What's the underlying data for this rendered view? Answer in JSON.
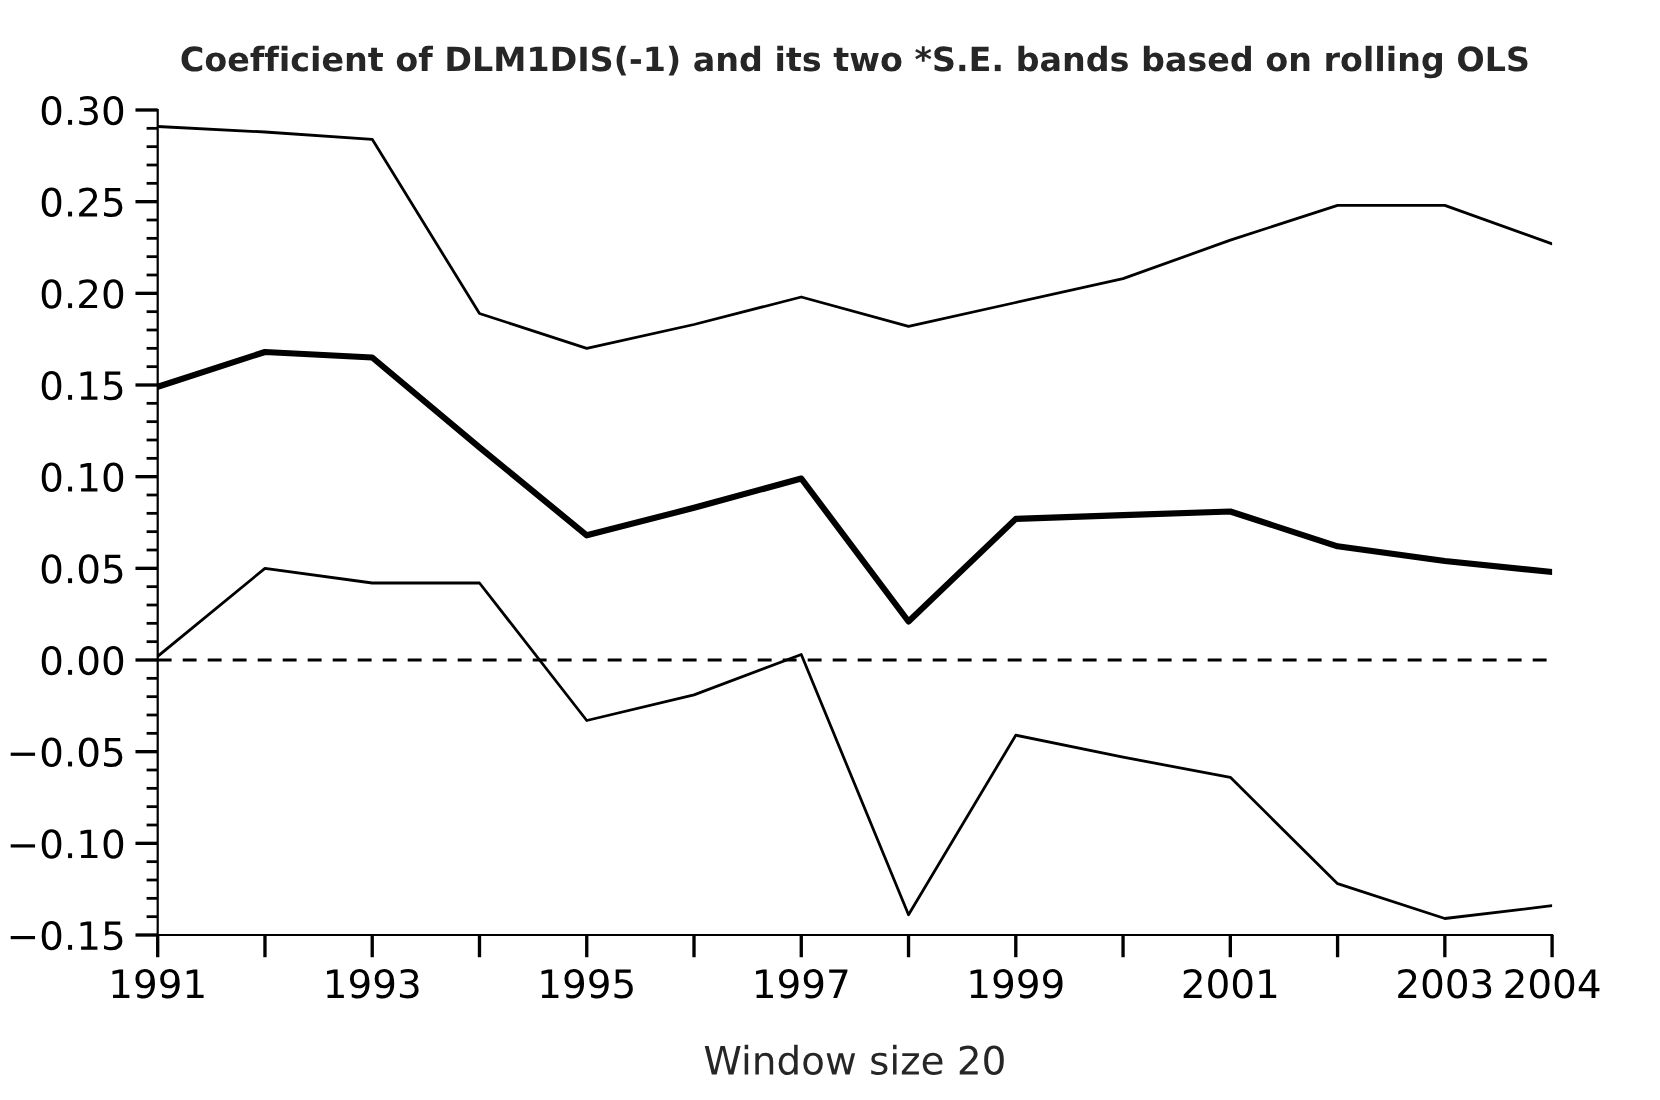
{
  "chart_data": {
    "type": "line",
    "title": "Coefficient of DLM1DIS(-1) and its two *S.E. bands based on rolling OLS",
    "xlabel": "Window size 20",
    "x": [
      1991,
      1992,
      1993,
      1994,
      1995,
      1996,
      1997,
      1998,
      1999,
      2000,
      2001,
      2002,
      2003,
      2004
    ],
    "series": [
      {
        "color": "#000000",
        "values": [
          0.291,
          0.288,
          0.284,
          0.189,
          0.17,
          0.183,
          0.198,
          0.182,
          0.195,
          0.208,
          0.229,
          0.248,
          0.248,
          0.227
        ]
      },
      {
        "color": "#000000",
        "values": [
          0.149,
          0.168,
          0.165,
          0.116,
          0.068,
          0.083,
          0.099,
          0.021,
          0.077,
          0.079,
          0.081,
          0.062,
          0.054,
          0.048
        ]
      },
      {
        "color": "#000000",
        "values": [
          0.002,
          0.05,
          0.042,
          0.042,
          -0.033,
          -0.019,
          0.003,
          -0.139,
          -0.041,
          -0.053,
          -0.064,
          -0.122,
          -0.141,
          -0.134
        ]
      }
    ],
    "xlim": [
      1991,
      2004
    ],
    "xticks": [
      1991,
      {
        "value": 1992,
        "label": null
      },
      1993,
      {
        "value": 1994,
        "label": null
      },
      1995,
      {
        "value": 1996,
        "label": null
      },
      1997,
      {
        "value": 1998,
        "label": null
      },
      1999,
      {
        "value": 2000,
        "label": null
      },
      2001,
      {
        "value": 2002,
        "label": null
      },
      2003,
      2004
    ],
    "ylim": [
      -0.15,
      0.3
    ],
    "yticks": [
      {
        "value": -0.15,
        "label": "−0.15"
      },
      {
        "value": -0.1,
        "label": "−0.10"
      },
      {
        "value": -0.05,
        "label": "−0.05"
      },
      {
        "value": 0,
        "label": "0.00"
      },
      {
        "value": 0.05,
        "label": "0.05"
      },
      {
        "value": 0.1,
        "label": "0.10"
      },
      {
        "value": 0.15,
        "label": "0.15"
      },
      {
        "value": 0.2,
        "label": "0.20"
      },
      {
        "value": 0.25,
        "label": "0.25"
      },
      {
        "value": 0.3,
        "label": "0.30"
      }
    ],
    "ref_lines": [
      {
        "axis": "y",
        "value": 0,
        "color": "#000000",
        "line_style": "dashed"
      }
    ],
    "grid": false,
    "legend": false
  }
}
